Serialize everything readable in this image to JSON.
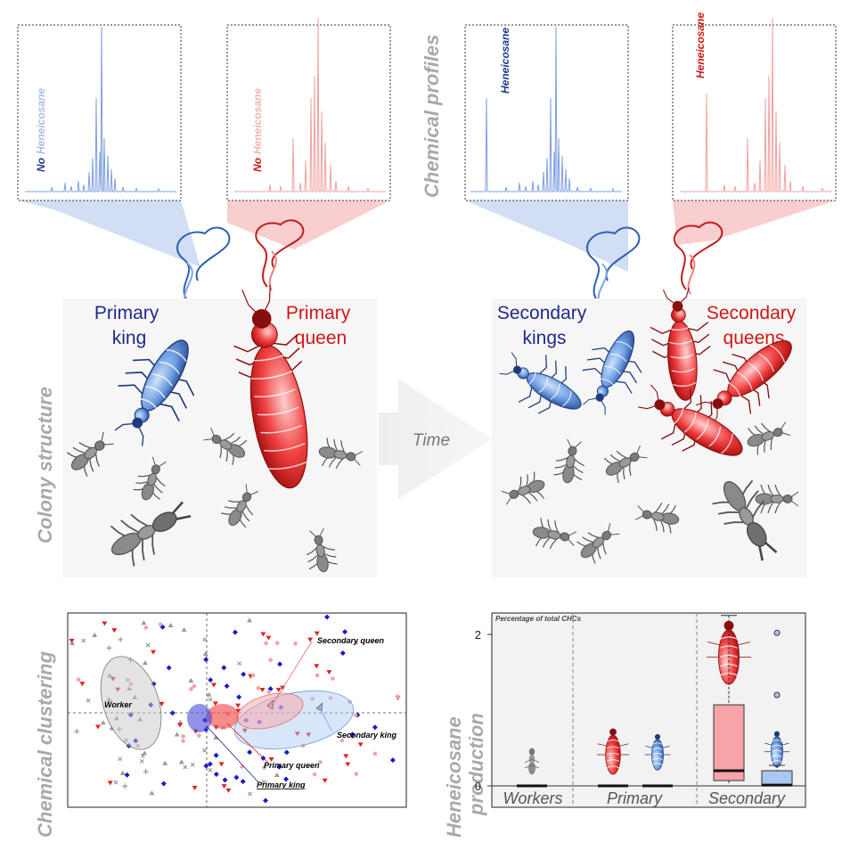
{
  "side_labels": {
    "chemical_profiles": "Chemical profiles",
    "colony_structure": "Colony structure",
    "chemical_clustering": "Chemical clustering",
    "heneicosane_production_1": "Heneicosane",
    "heneicosane_production_2": "production"
  },
  "chromatograms": {
    "primary_king_label_prefix": "No",
    "primary_king_label_main": "Heneicosane",
    "primary_queen_label_prefix": "No",
    "primary_queen_label_main": "Heneicosane",
    "secondary_king_label": "Heneicosane",
    "secondary_queen_label": "Heneicosane"
  },
  "colony": {
    "primary_king_line1": "Primary",
    "primary_king_line2": "king",
    "primary_queen_line1": "Primary",
    "primary_queen_line2": "queen",
    "secondary_kings_line1": "Secondary",
    "secondary_kings_line2": "kings",
    "secondary_queens_line1": "Secondary",
    "secondary_queens_line2": "queens",
    "time_label": "Time"
  },
  "clustering": {
    "worker": "Worker",
    "secondary_queen": "Secondary queen",
    "secondary_king": "Secondary king",
    "primary_queen": "Primary queen",
    "primary_king": "Primary king"
  },
  "chart_data": {
    "type": "box",
    "title": "Percentage of total CHCs",
    "categories": [
      "Workers",
      "Primary",
      "Secondary"
    ],
    "ylabel": "Heneicosane production",
    "ylim": [
      0,
      2.25
    ],
    "yticks": [
      0,
      2
    ],
    "series": [
      {
        "group": "Workers",
        "caste": "worker",
        "median": 0,
        "q1": 0,
        "q3": 0,
        "min": 0,
        "max": 0
      },
      {
        "group": "Primary",
        "caste": "queen",
        "median": 0,
        "q1": 0,
        "q3": 0,
        "min": 0,
        "max": 0
      },
      {
        "group": "Primary",
        "caste": "king",
        "median": 0,
        "q1": 0,
        "q3": 0,
        "min": 0,
        "max": 0
      },
      {
        "group": "Secondary",
        "caste": "queen",
        "median": 0.2,
        "q1": 0.07,
        "q3": 1.07,
        "min": 0.02,
        "max": 2.25
      },
      {
        "group": "Secondary",
        "caste": "king",
        "median": 0.01,
        "q1": 0.0,
        "q3": 0.2,
        "min": 0.0,
        "max": 0.27,
        "outliers": [
          1.2,
          2.02
        ]
      }
    ],
    "colors": {
      "queen": "#f7a4a8",
      "king": "#a9c7f2",
      "worker": "#888888"
    }
  }
}
